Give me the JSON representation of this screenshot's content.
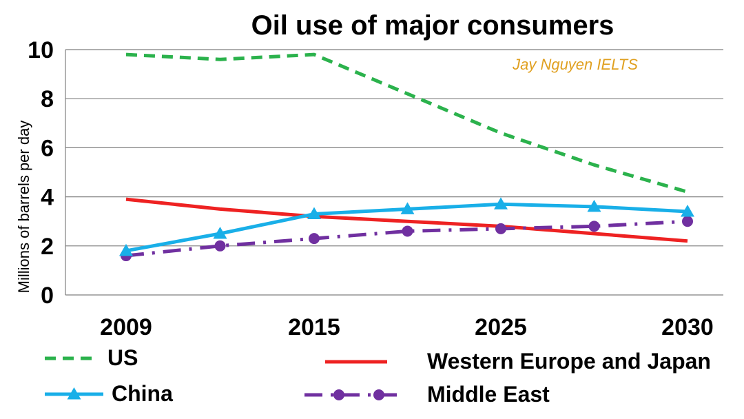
{
  "chart_data": {
    "type": "line",
    "title": "Oil use of major consumers",
    "ylabel": "Millions of barrels per day",
    "xlabel": "",
    "watermark": "Jay Nguyen IELTS",
    "ylim": [
      0,
      10
    ],
    "yticks": [
      0,
      2,
      4,
      6,
      8,
      10
    ],
    "x": [
      2009,
      2012,
      2015,
      2020,
      2025,
      2027.5,
      2030
    ],
    "xticks": [
      2009,
      2015,
      2025,
      2030
    ],
    "grid": true,
    "legend_position": "bottom",
    "series": [
      {
        "name": "US",
        "color": "#2bb24c",
        "style": "dashed",
        "marker": "none",
        "values": [
          9.8,
          9.6,
          9.8,
          8.2,
          6.6,
          5.3,
          4.2
        ]
      },
      {
        "name": "Western Europe and Japan",
        "color": "#ee2222",
        "style": "solid",
        "marker": "none",
        "values": [
          3.9,
          3.5,
          3.2,
          3.0,
          2.8,
          2.5,
          2.2
        ]
      },
      {
        "name": "China",
        "color": "#19afe8",
        "style": "solid",
        "marker": "triangle",
        "values": [
          1.8,
          2.5,
          3.3,
          3.5,
          3.7,
          3.6,
          3.4
        ]
      },
      {
        "name": "Middle East",
        "color": "#7030a0",
        "style": "dashdot",
        "marker": "circle",
        "values": [
          1.6,
          2.0,
          2.3,
          2.6,
          2.7,
          2.8,
          3.0
        ]
      }
    ]
  }
}
